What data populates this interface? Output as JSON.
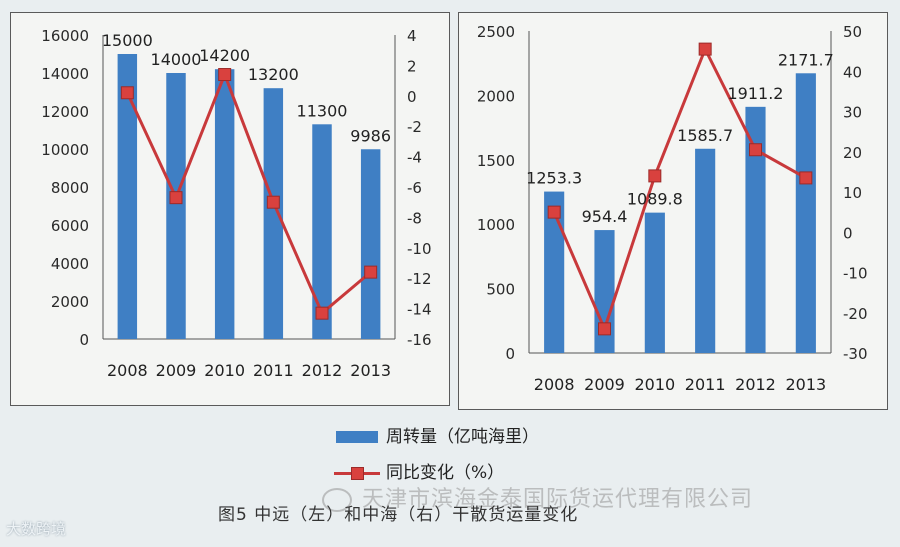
{
  "chart_data": [
    {
      "type": "bar+line",
      "categories": [
        "2008",
        "2009",
        "2010",
        "2011",
        "2012",
        "2013"
      ],
      "series": [
        {
          "name": "周转量（亿吨海里）",
          "axis": "left",
          "kind": "bar",
          "values": [
            15000,
            14000,
            14200,
            13200,
            11300,
            9986
          ]
        },
        {
          "name": "同比变化（%）",
          "axis": "right",
          "kind": "line",
          "values": [
            0.2,
            -6.7,
            1.4,
            -7.0,
            -14.3,
            -11.6
          ]
        }
      ],
      "data_labels": [
        "15000",
        "14000",
        "14200",
        "13200",
        "11300",
        "9986"
      ],
      "y_left": {
        "lim": [
          0,
          16000
        ],
        "ticks": [
          "0",
          "2000",
          "4000",
          "6000",
          "8000",
          "10000",
          "12000",
          "14000",
          "16000"
        ]
      },
      "y_right": {
        "lim": [
          -16,
          4
        ],
        "ticks": [
          "-16",
          "-14",
          "-12",
          "-10",
          "-8",
          "-6",
          "-4",
          "-2",
          "0",
          "2",
          "4"
        ]
      }
    },
    {
      "type": "bar+line",
      "categories": [
        "2008",
        "2009",
        "2010",
        "2011",
        "2012",
        "2013"
      ],
      "series": [
        {
          "name": "周转量（亿吨海里）",
          "axis": "left",
          "kind": "bar",
          "values": [
            1253.3,
            954.4,
            1089.8,
            1585.7,
            1911.2,
            2171.7
          ]
        },
        {
          "name": "同比变化（%）",
          "axis": "right",
          "kind": "line",
          "values": [
            5.0,
            -24.0,
            14.0,
            45.5,
            20.5,
            13.5
          ]
        }
      ],
      "data_labels": [
        "1253.3",
        "954.4",
        "1089.8",
        "1585.7",
        "1911.2",
        "2171.7"
      ],
      "y_left": {
        "lim": [
          0,
          2500
        ],
        "ticks": [
          "0",
          "500",
          "1000",
          "1500",
          "2000",
          "2500"
        ]
      },
      "y_right": {
        "lim": [
          -30,
          50
        ],
        "ticks": [
          "-30",
          "-20",
          "-10",
          "0",
          "10",
          "20",
          "30",
          "40",
          "50"
        ]
      }
    }
  ],
  "legend": {
    "bar_label": "周转量（亿吨海里）",
    "line_label": "同比变化（%）"
  },
  "caption": "图5   中远（左）和中海（右）干散货运量变化",
  "watermark": "天津市滨海金泰国际货运代理有限公司",
  "corner_logo": "大数跨境",
  "colors": {
    "bar": "#3f7fc4",
    "line": "#c8393b",
    "marker": "#d9413e"
  }
}
